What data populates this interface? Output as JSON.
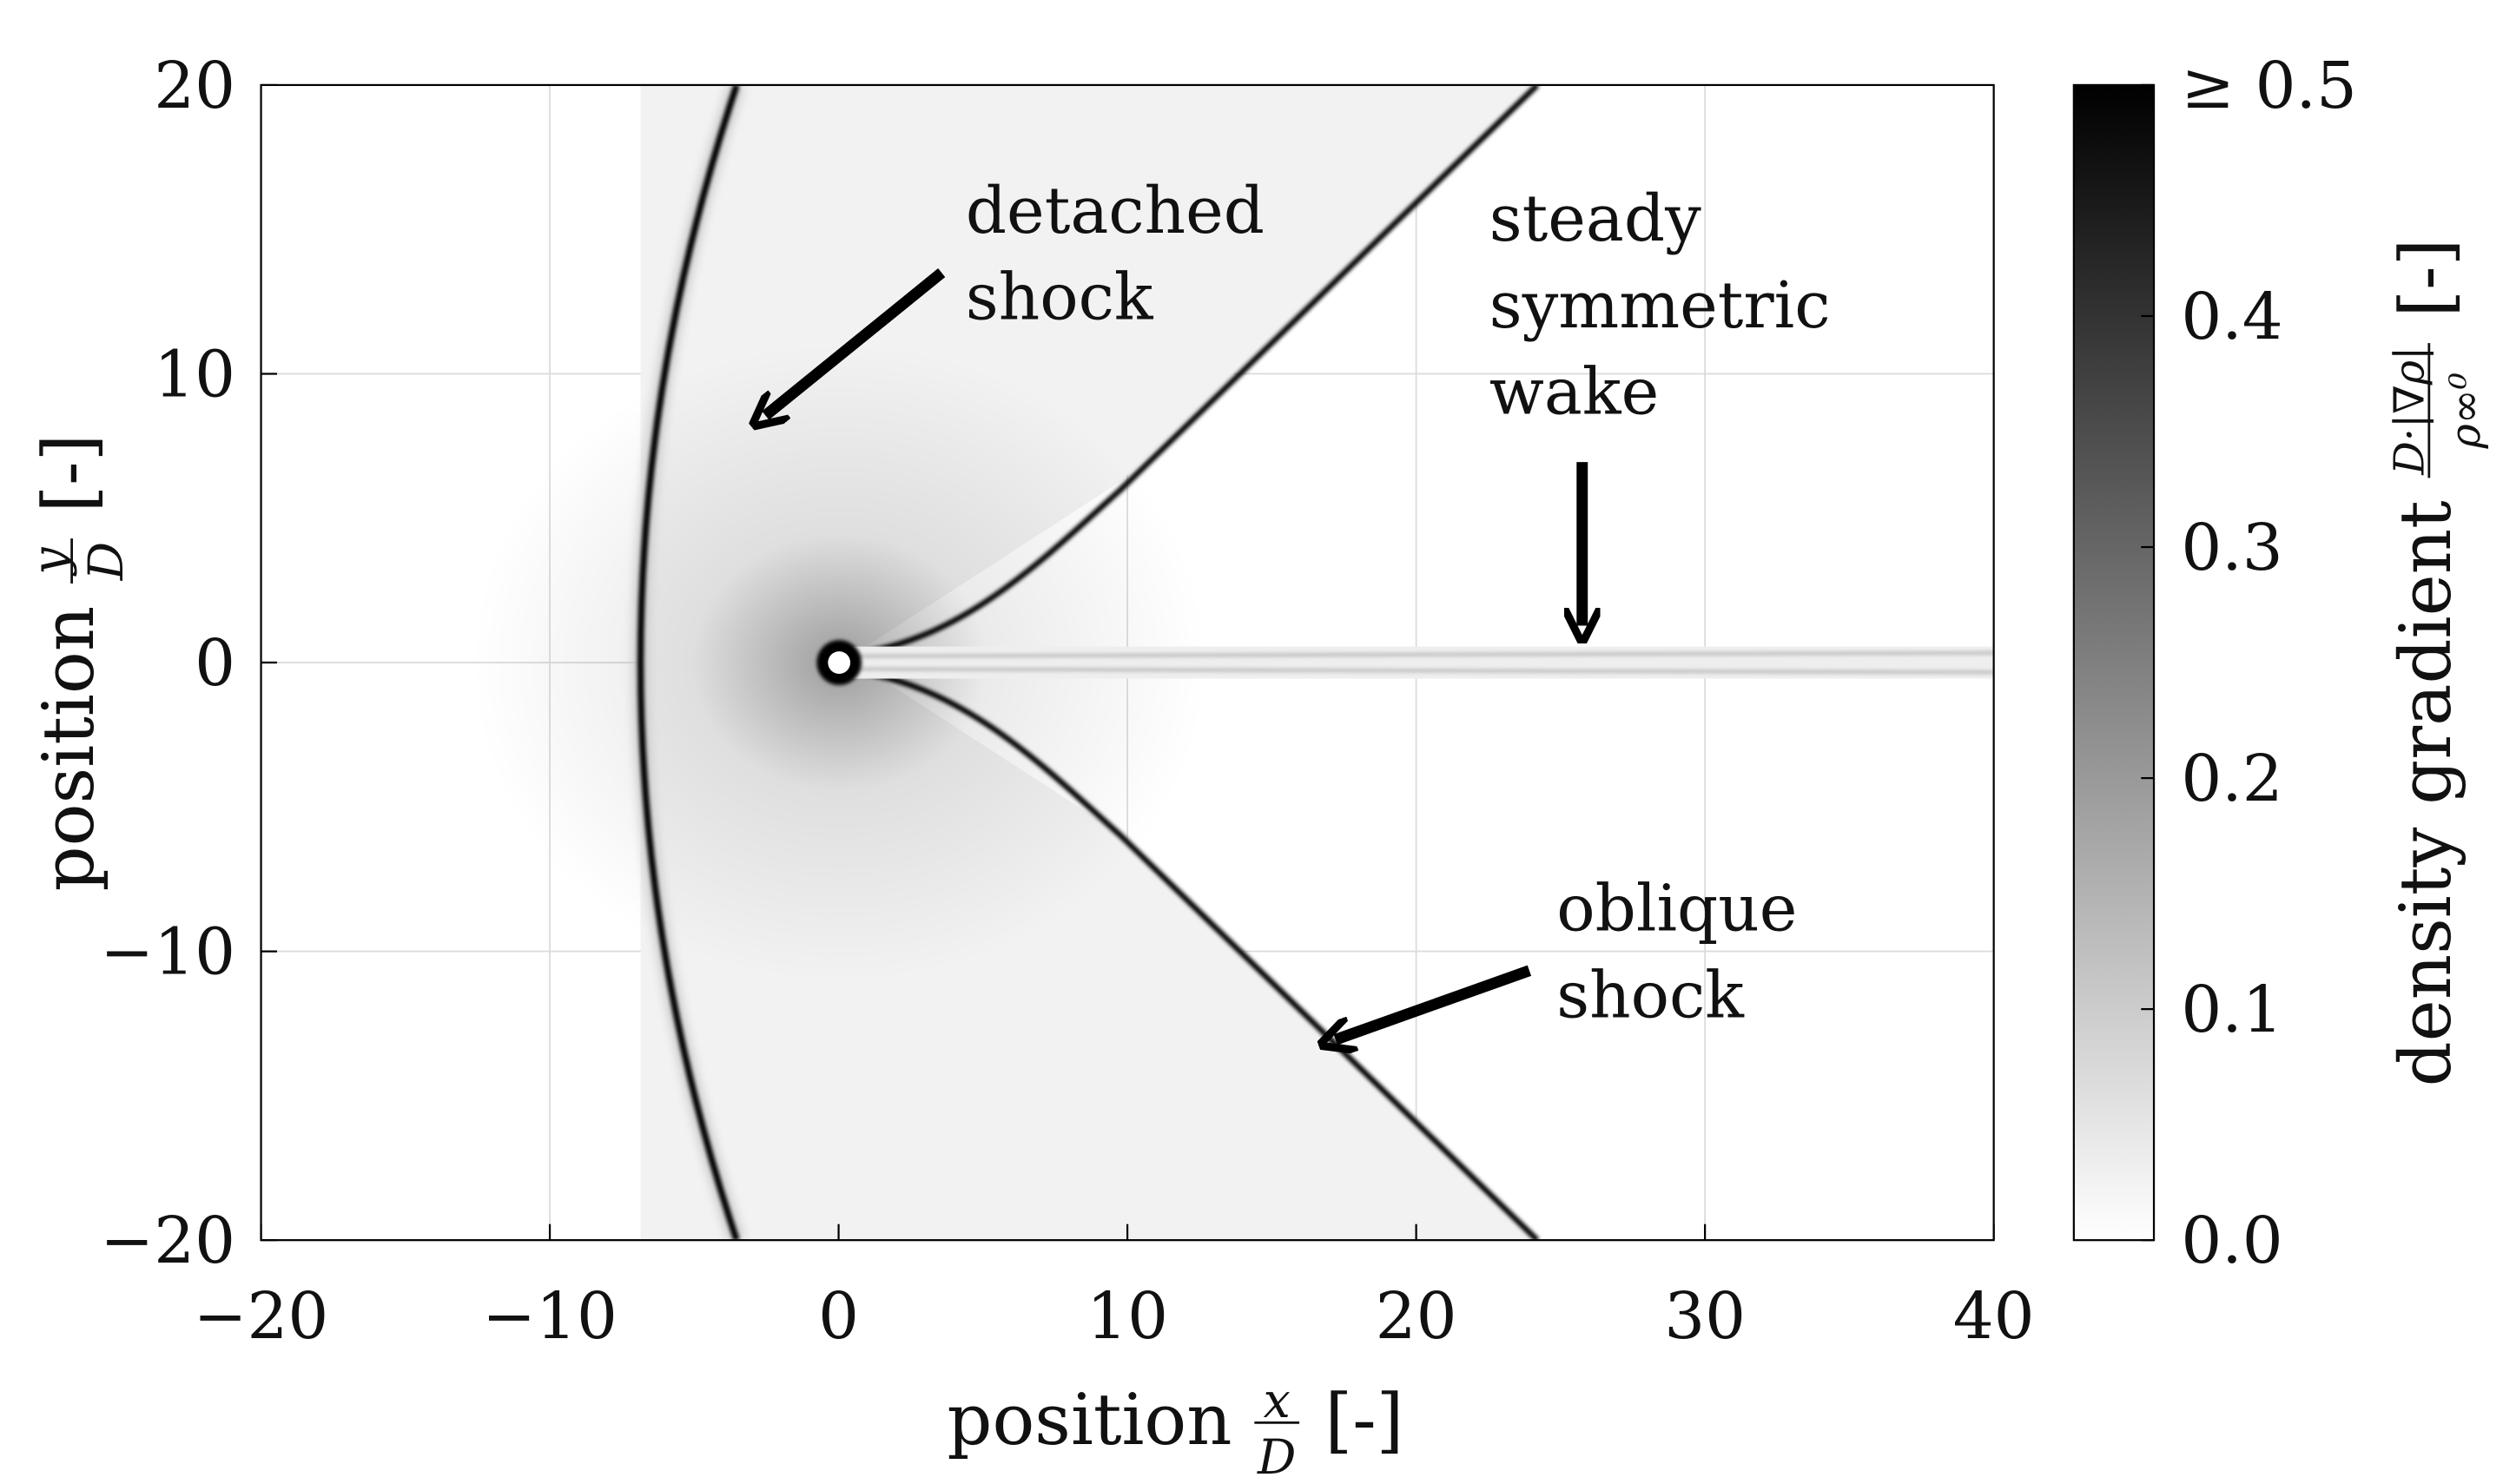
{
  "chart_data": {
    "type": "field",
    "x_label": {
      "text": "position",
      "numerator": "x",
      "denominator": "D",
      "unit": "[-]"
    },
    "y_label": {
      "text": "position",
      "numerator": "y",
      "denominator": "D",
      "unit": "[-]"
    },
    "xlim": [
      -20,
      40
    ],
    "xticks": [
      {
        "value": -20,
        "label": "−20"
      },
      {
        "value": -10,
        "label": "−10"
      },
      0,
      10,
      20,
      30,
      40
    ],
    "ylim": [
      -20,
      20
    ],
    "yticks": [
      {
        "value": -20,
        "label": "−20"
      },
      {
        "value": -10,
        "label": "−10"
      },
      0,
      10,
      20
    ],
    "grid": true,
    "colorbar": {
      "label": {
        "text": "density gradient",
        "numerator": "D·|∇ρ|",
        "denominator": "ρ∞⁰",
        "unit": "[-]"
      },
      "clim": [
        0,
        0.5
      ],
      "ticks": [
        {
          "value": 0,
          "label": "0.0"
        },
        0.1,
        0.2,
        0.3,
        0.4,
        {
          "value": 0.5,
          "label": "≥ 0.5"
        }
      ],
      "colors": [
        "#ffffff",
        "#000000"
      ]
    },
    "annotations": [
      {
        "lines": [
          "detached",
          "shock"
        ]
      },
      {
        "lines": [
          "steady",
          "symmetric",
          "wake"
        ]
      },
      {
        "lines": [
          "oblique",
          "shock"
        ]
      }
    ]
  }
}
